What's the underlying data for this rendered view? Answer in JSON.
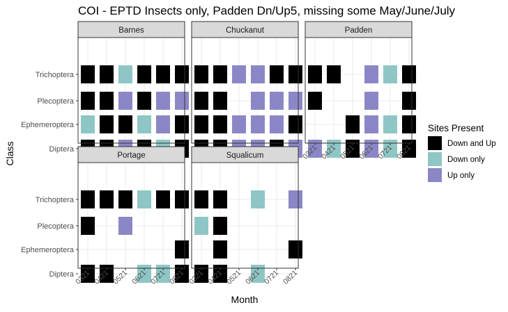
{
  "chart_data": {
    "type": "heatmap",
    "title": "COI - EPTD Insects only, Padden Dn/Up5, missing some May/June/July",
    "xlabel": "Month",
    "ylabel": "Class",
    "months": [
      "0321",
      "0421",
      "0521",
      "0621",
      "0721",
      "0821"
    ],
    "classes": [
      "Trichoptera",
      "Plecoptera",
      "Ephemeroptera",
      "Diptera"
    ],
    "legend": {
      "title": "Sites Present",
      "placement": "right",
      "entries": [
        {
          "key": "both",
          "label": "Down and Up",
          "color": "#000000"
        },
        {
          "key": "down",
          "label": "Down only",
          "color": "#8ec6c5"
        },
        {
          "key": "up",
          "label": "Up only",
          "color": "#8b87c6"
        }
      ]
    },
    "grid": true,
    "panels": [
      {
        "name": "Barnes",
        "cells": {
          "Trichoptera": [
            "both",
            "both",
            "down",
            "both",
            "both",
            "both"
          ],
          "Plecoptera": [
            "both",
            "both",
            "up",
            "both",
            "up",
            "up"
          ],
          "Ephemeroptera": [
            "down",
            "both",
            "both",
            "down",
            "up",
            "both"
          ],
          "Diptera": [
            "both",
            "both",
            "up",
            "both",
            "down",
            "both"
          ]
        }
      },
      {
        "name": "Chuckanut",
        "cells": {
          "Trichoptera": [
            "both",
            "both",
            "up",
            "up",
            "both",
            "both"
          ],
          "Plecoptera": [
            "both",
            "both",
            null,
            "up",
            "up",
            "up"
          ],
          "Ephemeroptera": [
            "both",
            "both",
            "up",
            "up",
            "up",
            "both"
          ],
          "Diptera": [
            "both",
            "both",
            "up",
            "up",
            "both",
            "up"
          ]
        }
      },
      {
        "name": "Padden",
        "cells": {
          "Trichoptera": [
            "both",
            "both",
            null,
            "up",
            "down",
            "both"
          ],
          "Plecoptera": [
            "both",
            null,
            null,
            "up",
            null,
            "both"
          ],
          "Ephemeroptera": [
            null,
            null,
            "both",
            "up",
            "down",
            "both"
          ],
          "Diptera": [
            "up",
            "down",
            "both",
            "up",
            "down",
            "both"
          ]
        }
      },
      {
        "name": "Portage",
        "cells": {
          "Trichoptera": [
            "both",
            "both",
            "both",
            "down",
            "both",
            "both"
          ],
          "Plecoptera": [
            "both",
            null,
            "up",
            null,
            null,
            null
          ],
          "Ephemeroptera": [
            null,
            null,
            null,
            null,
            null,
            "both"
          ],
          "Diptera": [
            "both",
            "both",
            null,
            "down",
            "down",
            "both"
          ]
        }
      },
      {
        "name": "Squalicum",
        "cells": {
          "Trichoptera": [
            "both",
            "both",
            null,
            "down",
            null,
            "up"
          ],
          "Plecoptera": [
            "down",
            "both",
            null,
            null,
            null,
            null
          ],
          "Ephemeroptera": [
            null,
            "both",
            null,
            null,
            null,
            "both"
          ],
          "Diptera": [
            "both",
            "both",
            null,
            "down",
            null,
            null
          ]
        }
      }
    ]
  }
}
